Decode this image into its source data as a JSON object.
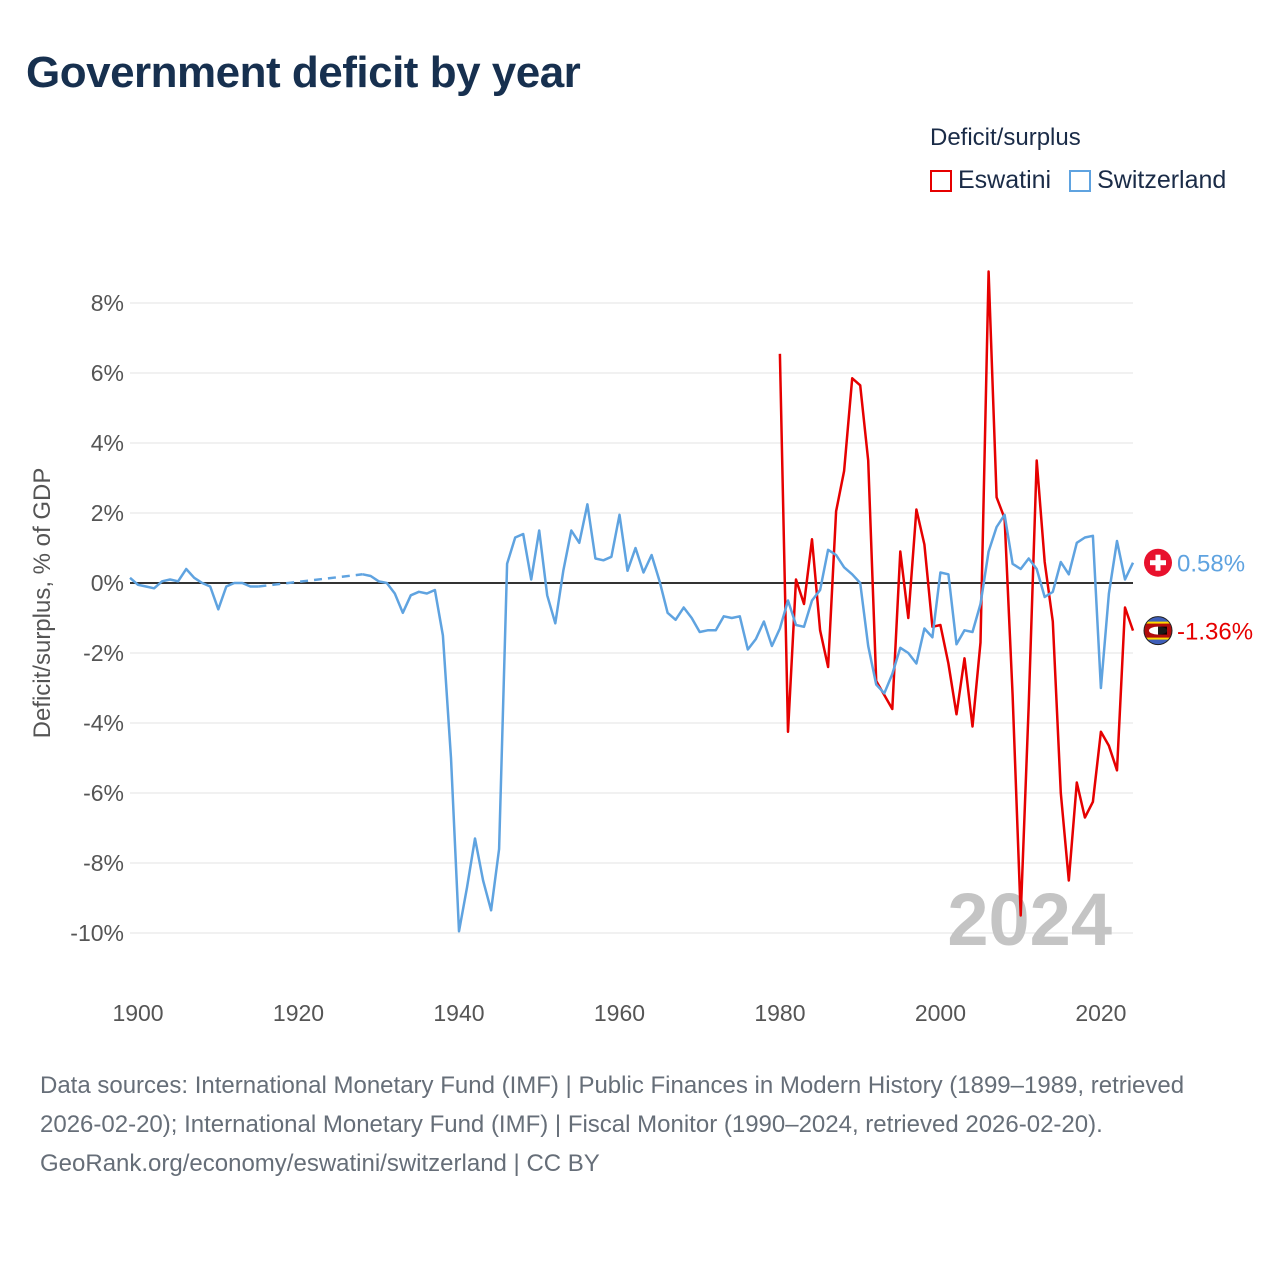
{
  "title": "Government deficit by year",
  "legend": {
    "title": "Deficit/surplus",
    "items": [
      {
        "label": "Eswatini",
        "color": "#e60000"
      },
      {
        "label": "Switzerland",
        "color": "#5fa3e0"
      }
    ]
  },
  "footer": {
    "sources": "Data sources: International Monetary Fund (IMF) | Public Finances in Modern History (1899–1989, retrieved 2026-02-20); International Monetary Fund (IMF) | Fiscal Monitor (1990–2024, retrieved 2026-02-20).",
    "credit": "GeoRank.org/economy/eswatini/switzerland | CC BY"
  },
  "chart_data": {
    "type": "line",
    "title": "Government deficit by year",
    "xlabel": "",
    "ylabel": "Deficit/surplus, % of GDP",
    "xlim": [
      1899,
      2024
    ],
    "ylim": [
      -11,
      9
    ],
    "y_ticks": [
      8,
      6,
      4,
      2,
      0,
      -2,
      -4,
      -6,
      -8,
      -10
    ],
    "y_tick_labels": [
      "8%",
      "6%",
      "4%",
      "2%",
      "0%",
      "-2%",
      "-4%",
      "-6%",
      "-8%",
      "-10%"
    ],
    "x_ticks": [
      1900,
      1920,
      1940,
      1960,
      1980,
      2000,
      2020
    ],
    "x_tick_labels": [
      "1900",
      "1920",
      "1940",
      "1960",
      "1980",
      "2000",
      "2020"
    ],
    "year_watermark": "2024",
    "series": [
      {
        "name": "Eswatini",
        "color": "#e60000",
        "end_label": "-1.36%",
        "end_flag": "eswatini-flag-icon",
        "points": [
          [
            1980,
            6.55
          ],
          [
            1981,
            -4.25
          ],
          [
            1982,
            0.1
          ],
          [
            1983,
            -0.6
          ],
          [
            1984,
            1.25
          ],
          [
            1985,
            -1.35
          ],
          [
            1986,
            -2.4
          ],
          [
            1987,
            2.05
          ],
          [
            1988,
            3.2
          ],
          [
            1989,
            5.85
          ],
          [
            1990,
            5.65
          ],
          [
            1991,
            3.5
          ],
          [
            1992,
            -2.8
          ],
          [
            1993,
            -3.2
          ],
          [
            1994,
            -3.6
          ],
          [
            1995,
            0.9
          ],
          [
            1996,
            -1.0
          ],
          [
            1997,
            2.1
          ],
          [
            1998,
            1.1
          ],
          [
            1999,
            -1.25
          ],
          [
            2000,
            -1.2
          ],
          [
            2001,
            -2.3
          ],
          [
            2002,
            -3.75
          ],
          [
            2003,
            -2.15
          ],
          [
            2004,
            -4.1
          ],
          [
            2005,
            -1.7
          ],
          [
            2006,
            8.9
          ],
          [
            2007,
            2.45
          ],
          [
            2008,
            1.85
          ],
          [
            2009,
            -3.2
          ],
          [
            2010,
            -9.5
          ],
          [
            2011,
            -3.5
          ],
          [
            2012,
            3.5
          ],
          [
            2013,
            0.6
          ],
          [
            2014,
            -1.1
          ],
          [
            2015,
            -6.0
          ],
          [
            2016,
            -8.5
          ],
          [
            2017,
            -5.7
          ],
          [
            2018,
            -6.7
          ],
          [
            2019,
            -6.25
          ],
          [
            2020,
            -4.25
          ],
          [
            2021,
            -4.65
          ],
          [
            2022,
            -5.35
          ],
          [
            2023,
            -0.7
          ],
          [
            2024,
            -1.36
          ]
        ]
      },
      {
        "name": "Switzerland",
        "color": "#5fa3e0",
        "end_label": "0.58%",
        "end_flag": "switzerland-flag-icon",
        "points": [
          [
            1899,
            0.15
          ],
          [
            1900,
            -0.05
          ],
          [
            1901,
            -0.1
          ],
          [
            1902,
            -0.15
          ],
          [
            1903,
            0.05
          ],
          [
            1904,
            0.1
          ],
          [
            1905,
            0.05
          ],
          [
            1906,
            0.4
          ],
          [
            1907,
            0.15
          ],
          [
            1908,
            0.0
          ],
          [
            1909,
            -0.1
          ],
          [
            1910,
            -0.75
          ],
          [
            1911,
            -0.1
          ],
          [
            1912,
            0.0
          ],
          [
            1913,
            0.0
          ],
          [
            1914,
            -0.1
          ],
          [
            1915,
            -0.1
          ],
          [
            1928,
            0.25
          ],
          [
            1929,
            0.2
          ],
          [
            1930,
            0.05
          ],
          [
            1931,
            0.0
          ],
          [
            1932,
            -0.3
          ],
          [
            1933,
            -0.85
          ],
          [
            1934,
            -0.35
          ],
          [
            1935,
            -0.25
          ],
          [
            1936,
            -0.3
          ],
          [
            1937,
            -0.2
          ],
          [
            1938,
            -1.5
          ],
          [
            1939,
            -5.0
          ],
          [
            1940,
            -9.95
          ],
          [
            1941,
            -8.7
          ],
          [
            1942,
            -7.3
          ],
          [
            1943,
            -8.5
          ],
          [
            1944,
            -9.35
          ],
          [
            1945,
            -7.6
          ],
          [
            1946,
            0.55
          ],
          [
            1947,
            1.3
          ],
          [
            1948,
            1.4
          ],
          [
            1949,
            0.1
          ],
          [
            1950,
            1.5
          ],
          [
            1951,
            -0.35
          ],
          [
            1952,
            -1.15
          ],
          [
            1953,
            0.35
          ],
          [
            1954,
            1.5
          ],
          [
            1955,
            1.15
          ],
          [
            1956,
            2.25
          ],
          [
            1957,
            0.7
          ],
          [
            1958,
            0.65
          ],
          [
            1959,
            0.75
          ],
          [
            1960,
            1.95
          ],
          [
            1961,
            0.35
          ],
          [
            1962,
            1.0
          ],
          [
            1963,
            0.3
          ],
          [
            1964,
            0.8
          ],
          [
            1965,
            0.05
          ],
          [
            1966,
            -0.85
          ],
          [
            1967,
            -1.05
          ],
          [
            1968,
            -0.7
          ],
          [
            1969,
            -1.0
          ],
          [
            1970,
            -1.4
          ],
          [
            1971,
            -1.35
          ],
          [
            1972,
            -1.35
          ],
          [
            1973,
            -0.95
          ],
          [
            1974,
            -1.0
          ],
          [
            1975,
            -0.95
          ],
          [
            1976,
            -1.9
          ],
          [
            1977,
            -1.6
          ],
          [
            1978,
            -1.1
          ],
          [
            1979,
            -1.8
          ],
          [
            1980,
            -1.3
          ],
          [
            1981,
            -0.5
          ],
          [
            1982,
            -1.2
          ],
          [
            1983,
            -1.25
          ],
          [
            1984,
            -0.5
          ],
          [
            1985,
            -0.2
          ],
          [
            1986,
            0.95
          ],
          [
            1987,
            0.8
          ],
          [
            1988,
            0.45
          ],
          [
            1989,
            0.25
          ],
          [
            1990,
            0.0
          ],
          [
            1991,
            -1.8
          ],
          [
            1992,
            -2.9
          ],
          [
            1993,
            -3.15
          ],
          [
            1994,
            -2.6
          ],
          [
            1995,
            -1.85
          ],
          [
            1996,
            -2.0
          ],
          [
            1997,
            -2.3
          ],
          [
            1998,
            -1.3
          ],
          [
            1999,
            -1.55
          ],
          [
            2000,
            0.3
          ],
          [
            2001,
            0.25
          ],
          [
            2002,
            -1.75
          ],
          [
            2003,
            -1.35
          ],
          [
            2004,
            -1.4
          ],
          [
            2005,
            -0.6
          ],
          [
            2006,
            0.9
          ],
          [
            2007,
            1.6
          ],
          [
            2008,
            1.95
          ],
          [
            2009,
            0.55
          ],
          [
            2010,
            0.4
          ],
          [
            2011,
            0.7
          ],
          [
            2012,
            0.4
          ],
          [
            2013,
            -0.4
          ],
          [
            2014,
            -0.25
          ],
          [
            2015,
            0.6
          ],
          [
            2016,
            0.25
          ],
          [
            2017,
            1.15
          ],
          [
            2018,
            1.3
          ],
          [
            2019,
            1.35
          ],
          [
            2020,
            -3.0
          ],
          [
            2021,
            -0.3
          ],
          [
            2022,
            1.2
          ],
          [
            2023,
            0.1
          ],
          [
            2024,
            0.58
          ]
        ],
        "interpolated_gap": [
          1915,
          1928
        ]
      }
    ]
  }
}
